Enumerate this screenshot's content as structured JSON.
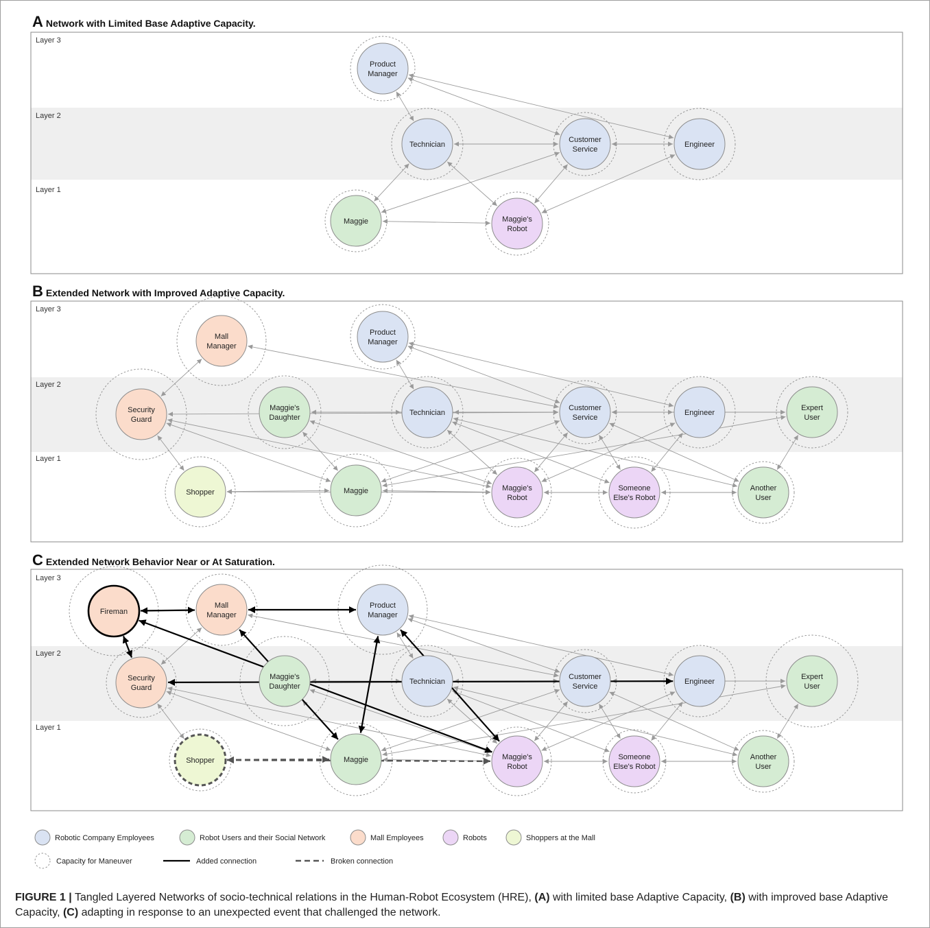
{
  "panels": [
    {
      "letter": "A",
      "title": "Network with Limited Base Adaptive Capacity.",
      "layers": [
        "Layer 3",
        "Layer 2",
        "Layer 1"
      ],
      "nodes": [
        {
          "id": "pm",
          "lines": [
            "Product",
            "Manager"
          ],
          "group": "robotic_company",
          "capacity": "normal"
        },
        {
          "id": "tech",
          "lines": [
            "Technician"
          ],
          "group": "robotic_company",
          "capacity": "normal"
        },
        {
          "id": "cs",
          "lines": [
            "Customer",
            "Service"
          ],
          "group": "robotic_company",
          "capacity": "normal"
        },
        {
          "id": "eng",
          "lines": [
            "Engineer"
          ],
          "group": "robotic_company",
          "capacity": "normal"
        },
        {
          "id": "maggie",
          "lines": [
            "Maggie"
          ],
          "group": "robot_users",
          "capacity": "normal"
        },
        {
          "id": "mrobot",
          "lines": [
            "Maggie's",
            "Robot"
          ],
          "group": "robots",
          "capacity": "normal"
        }
      ],
      "edges": [
        [
          "pm",
          "tech",
          "normal"
        ],
        [
          "pm",
          "cs",
          "normal"
        ],
        [
          "pm",
          "eng",
          "normal"
        ],
        [
          "tech",
          "cs",
          "normal"
        ],
        [
          "cs",
          "eng",
          "normal"
        ],
        [
          "tech",
          "maggie",
          "normal"
        ],
        [
          "tech",
          "mrobot",
          "normal"
        ],
        [
          "cs",
          "maggie",
          "normal"
        ],
        [
          "cs",
          "mrobot",
          "normal"
        ],
        [
          "eng",
          "mrobot",
          "normal"
        ],
        [
          "maggie",
          "mrobot",
          "normal"
        ]
      ]
    },
    {
      "letter": "B",
      "title": "Extended Network with Improved Adaptive Capacity.",
      "layers": [
        "Layer 3",
        "Layer 2",
        "Layer 1"
      ],
      "nodes": [
        {
          "id": "mm",
          "lines": [
            "Mall",
            "Manager"
          ],
          "group": "mall_employees",
          "capacity": "large"
        },
        {
          "id": "pm",
          "lines": [
            "Product",
            "Manager"
          ],
          "group": "robotic_company",
          "capacity": "normal"
        },
        {
          "id": "sg",
          "lines": [
            "Security",
            "Guard"
          ],
          "group": "mall_employees",
          "capacity": "large"
        },
        {
          "id": "md",
          "lines": [
            "Maggie's",
            "Daughter"
          ],
          "group": "robot_users",
          "capacity": "large"
        },
        {
          "id": "tech",
          "lines": [
            "Technician"
          ],
          "group": "robotic_company",
          "capacity": "normal"
        },
        {
          "id": "cs",
          "lines": [
            "Customer",
            "Service"
          ],
          "group": "robotic_company",
          "capacity": "normal"
        },
        {
          "id": "eng",
          "lines": [
            "Engineer"
          ],
          "group": "robotic_company",
          "capacity": "normal"
        },
        {
          "id": "eu",
          "lines": [
            "Expert",
            "User"
          ],
          "group": "robot_users",
          "capacity": "normal"
        },
        {
          "id": "shopper",
          "lines": [
            "Shopper"
          ],
          "group": "shoppers",
          "capacity": "normal"
        },
        {
          "id": "maggie",
          "lines": [
            "Maggie"
          ],
          "group": "robot_users",
          "capacity": "normal"
        },
        {
          "id": "mrobot",
          "lines": [
            "Maggie's",
            "Robot"
          ],
          "group": "robots",
          "capacity": "normal"
        },
        {
          "id": "serobot",
          "lines": [
            "Someone",
            "Else's Robot"
          ],
          "group": "robots",
          "capacity": "normal"
        },
        {
          "id": "au",
          "lines": [
            "Another",
            "User"
          ],
          "group": "robot_users",
          "capacity": "normal"
        }
      ],
      "edges": [
        [
          "pm",
          "tech",
          "normal"
        ],
        [
          "pm",
          "cs",
          "normal"
        ],
        [
          "pm",
          "eng",
          "normal"
        ],
        [
          "mm",
          "cs",
          "normal"
        ],
        [
          "mm",
          "sg",
          "normal"
        ],
        [
          "tech",
          "cs",
          "normal"
        ],
        [
          "cs",
          "eng",
          "normal"
        ],
        [
          "cs",
          "eu",
          "normal"
        ],
        [
          "md",
          "tech",
          "normal"
        ],
        [
          "md",
          "cs",
          "normal"
        ],
        [
          "md",
          "maggie",
          "normal"
        ],
        [
          "md",
          "mrobot",
          "normal"
        ],
        [
          "sg",
          "shopper",
          "normal"
        ],
        [
          "sg",
          "maggie",
          "normal"
        ],
        [
          "sg",
          "cs",
          "normal"
        ],
        [
          "sg",
          "mrobot",
          "normal"
        ],
        [
          "tech",
          "mrobot",
          "normal"
        ],
        [
          "tech",
          "serobot",
          "normal"
        ],
        [
          "tech",
          "au",
          "normal"
        ],
        [
          "cs",
          "mrobot",
          "normal"
        ],
        [
          "cs",
          "serobot",
          "normal"
        ],
        [
          "cs",
          "maggie",
          "normal"
        ],
        [
          "cs",
          "au",
          "normal"
        ],
        [
          "eng",
          "mrobot",
          "normal"
        ],
        [
          "eng",
          "serobot",
          "normal"
        ],
        [
          "eu",
          "maggie",
          "normal"
        ],
        [
          "eu",
          "au",
          "normal"
        ],
        [
          "shopper",
          "maggie",
          "normal"
        ],
        [
          "shopper",
          "mrobot",
          "normal"
        ],
        [
          "maggie",
          "mrobot",
          "normal"
        ],
        [
          "mrobot",
          "serobot",
          "normal"
        ],
        [
          "serobot",
          "au",
          "normal"
        ]
      ]
    },
    {
      "letter": "C",
      "title": "Extended Network Behavior Near or At Saturation.",
      "layers": [
        "Layer 3",
        "Layer 2",
        "Layer 1"
      ],
      "nodes": [
        {
          "id": "fireman",
          "lines": [
            "Fireman"
          ],
          "group": "mall_employees",
          "capacity": "large",
          "emphasis": "bold"
        },
        {
          "id": "mm",
          "lines": [
            "Mall",
            "Manager"
          ],
          "group": "mall_employees",
          "capacity": "normal"
        },
        {
          "id": "pm",
          "lines": [
            "Product",
            "Manager"
          ],
          "group": "robotic_company",
          "capacity": "large"
        },
        {
          "id": "sg",
          "lines": [
            "Security",
            "Guard"
          ],
          "group": "mall_employees",
          "capacity": "normal"
        },
        {
          "id": "md",
          "lines": [
            "Maggie's",
            "Daughter"
          ],
          "group": "robot_users",
          "capacity": "large"
        },
        {
          "id": "tech",
          "lines": [
            "Technician"
          ],
          "group": "robotic_company",
          "capacity": "normal"
        },
        {
          "id": "cs",
          "lines": [
            "Customer",
            "Service"
          ],
          "group": "robotic_company",
          "capacity": "normal"
        },
        {
          "id": "eng",
          "lines": [
            "Engineer"
          ],
          "group": "robotic_company",
          "capacity": "normal"
        },
        {
          "id": "eu",
          "lines": [
            "Expert",
            "User"
          ],
          "group": "robot_users",
          "capacity": "large"
        },
        {
          "id": "shopper",
          "lines": [
            "Shopper"
          ],
          "group": "shoppers",
          "capacity": "small",
          "emphasis": "dashed"
        },
        {
          "id": "maggie",
          "lines": [
            "Maggie"
          ],
          "group": "robot_users",
          "capacity": "normal"
        },
        {
          "id": "mrobot",
          "lines": [
            "Maggie's",
            "Robot"
          ],
          "group": "robots",
          "capacity": "normal"
        },
        {
          "id": "serobot",
          "lines": [
            "Someone",
            "Else's Robot"
          ],
          "group": "robots",
          "capacity": "normal"
        },
        {
          "id": "au",
          "lines": [
            "Another",
            "User"
          ],
          "group": "robot_users",
          "capacity": "normal"
        }
      ],
      "edges": [
        [
          "fireman",
          "mm",
          "added"
        ],
        [
          "fireman",
          "sg",
          "added"
        ],
        [
          "fireman",
          "mrobot",
          "added"
        ],
        [
          "mm",
          "pm",
          "added"
        ],
        [
          "mm",
          "maggie",
          "added"
        ],
        [
          "pm",
          "maggie",
          "added"
        ],
        [
          "pm",
          "mrobot",
          "added"
        ],
        [
          "sg",
          "eng",
          "added"
        ],
        [
          "shopper",
          "maggie",
          "broken"
        ],
        [
          "shopper",
          "mrobot",
          "broken"
        ],
        [
          "pm",
          "tech",
          "normal"
        ],
        [
          "pm",
          "cs",
          "normal"
        ],
        [
          "pm",
          "eng",
          "normal"
        ],
        [
          "mm",
          "cs",
          "normal"
        ],
        [
          "mm",
          "sg",
          "normal"
        ],
        [
          "tech",
          "cs",
          "normal"
        ],
        [
          "cs",
          "eng",
          "normal"
        ],
        [
          "cs",
          "eu",
          "normal"
        ],
        [
          "md",
          "tech",
          "normal"
        ],
        [
          "md",
          "cs",
          "normal"
        ],
        [
          "md",
          "maggie",
          "normal"
        ],
        [
          "md",
          "mrobot",
          "normal"
        ],
        [
          "sg",
          "shopper",
          "normal"
        ],
        [
          "sg",
          "maggie",
          "normal"
        ],
        [
          "sg",
          "cs",
          "normal"
        ],
        [
          "sg",
          "mrobot",
          "normal"
        ],
        [
          "tech",
          "mrobot",
          "normal"
        ],
        [
          "tech",
          "serobot",
          "normal"
        ],
        [
          "tech",
          "au",
          "normal"
        ],
        [
          "cs",
          "mrobot",
          "normal"
        ],
        [
          "cs",
          "serobot",
          "normal"
        ],
        [
          "cs",
          "maggie",
          "normal"
        ],
        [
          "cs",
          "au",
          "normal"
        ],
        [
          "eng",
          "mrobot",
          "normal"
        ],
        [
          "eng",
          "serobot",
          "normal"
        ],
        [
          "eu",
          "maggie",
          "normal"
        ],
        [
          "eu",
          "au",
          "normal"
        ],
        [
          "maggie",
          "mrobot",
          "normal"
        ],
        [
          "mrobot",
          "serobot",
          "normal"
        ],
        [
          "serobot",
          "au",
          "normal"
        ]
      ]
    }
  ],
  "legend": {
    "groups": [
      {
        "key": "robotic_company",
        "label": "Robotic Company Employees",
        "fill": "#dae3f3"
      },
      {
        "key": "robot_users",
        "label": "Robot Users and their Social Network",
        "fill": "#d5ecd3"
      },
      {
        "key": "mall_employees",
        "label": "Mall Employees",
        "fill": "#fbdccb"
      },
      {
        "key": "robots",
        "label": "Robots",
        "fill": "#ecd6f6"
      },
      {
        "key": "shoppers",
        "label": "Shoppers at the Mall",
        "fill": "#eef7d4"
      }
    ],
    "capacity_label": "Capacity for Maneuver",
    "added_label": "Added connection",
    "broken_label": "Broken connection"
  },
  "colors": {
    "node_border": "#8c8c8c",
    "layer_band": "#efefef",
    "edge": "#9a9a9a",
    "added_edge": "#000000",
    "broken_edge": "#555555"
  },
  "caption": {
    "figure_label": "FIGURE 1 |",
    "text_1": " Tangled Layered Networks of socio-technical relations in the Human-Robot Ecosystem (HRE), ",
    "a_label": "(A)",
    "text_2": " with limited base Adaptive Capacity, ",
    "b_label": "(B)",
    "text_3": " with improved base Adaptive Capacity, ",
    "c_label": "(C)",
    "text_4": " adapting in response to an unexpected event that challenged the network."
  }
}
